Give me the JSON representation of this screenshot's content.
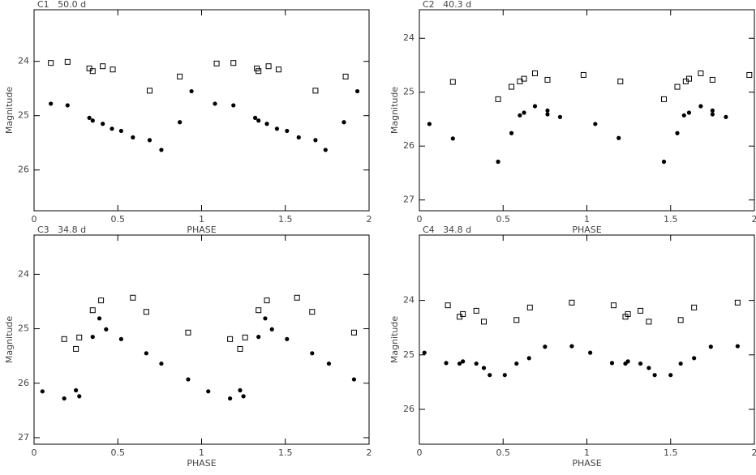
{
  "chart_data": [
    {
      "type": "scatter",
      "title": "C1   50.0 d",
      "xlabel": "PHASE",
      "ylabel": "Magnitude",
      "xlim": [
        0,
        2
      ],
      "ylim": [
        26.75,
        23.05
      ],
      "xticks": [
        0,
        0.5,
        1,
        1.5,
        2
      ],
      "yticks": [
        24,
        25,
        26
      ],
      "series": [
        {
          "marker": "square",
          "color": "#000000",
          "x": [
            0.1,
            0.2,
            0.33,
            0.35,
            0.41,
            0.47,
            0.69,
            0.87,
            1.09,
            1.19,
            1.33,
            1.34,
            1.4,
            1.46,
            1.68,
            1.86
          ],
          "values": [
            24.03,
            24.01,
            24.13,
            24.18,
            24.09,
            24.15,
            24.54,
            24.28,
            24.04,
            24.03,
            24.13,
            24.18,
            24.09,
            24.15,
            24.54,
            24.28
          ]
        },
        {
          "marker": "circle",
          "color": "#000000",
          "x": [
            0.1,
            0.2,
            0.33,
            0.35,
            0.41,
            0.465,
            0.52,
            0.59,
            0.69,
            0.76,
            0.87,
            0.94,
            1.08,
            1.19,
            1.32,
            1.34,
            1.39,
            1.45,
            1.51,
            1.58,
            1.68,
            1.74,
            1.85,
            1.93
          ],
          "values": [
            24.78,
            24.81,
            25.04,
            25.09,
            25.15,
            25.24,
            25.28,
            25.4,
            25.45,
            25.63,
            25.12,
            24.55,
            24.78,
            24.81,
            25.04,
            25.09,
            25.15,
            25.24,
            25.28,
            25.4,
            25.45,
            25.63,
            25.12,
            24.55
          ]
        }
      ]
    },
    {
      "type": "scatter",
      "title": "C2   40.3 d",
      "xlabel": "PHASE",
      "ylabel": "Magnitude",
      "xlim": [
        0,
        2
      ],
      "ylim": [
        27.2,
        23.47
      ],
      "xticks": [
        0,
        0.5,
        1,
        1.5,
        2
      ],
      "yticks": [
        24,
        25,
        26,
        27
      ],
      "series": [
        {
          "marker": "square",
          "color": "#000000",
          "x": [
            0.2,
            0.47,
            0.55,
            0.6,
            0.625,
            0.69,
            0.765,
            0.98,
            1.2,
            1.46,
            1.54,
            1.59,
            1.61,
            1.68,
            1.75,
            1.97
          ],
          "values": [
            24.81,
            25.13,
            24.9,
            24.8,
            24.75,
            24.65,
            24.77,
            24.68,
            24.8,
            25.13,
            24.9,
            24.8,
            24.75,
            24.65,
            24.77,
            24.68
          ]
        },
        {
          "marker": "circle",
          "color": "#000000",
          "x": [
            0.06,
            0.2,
            0.47,
            0.55,
            0.6,
            0.625,
            0.69,
            0.765,
            0.765,
            0.84,
            1.05,
            1.19,
            1.46,
            1.54,
            1.58,
            1.61,
            1.68,
            1.75,
            1.75,
            1.83
          ],
          "values": [
            25.59,
            25.86,
            26.29,
            25.76,
            25.43,
            25.38,
            25.26,
            25.41,
            25.34,
            25.46,
            25.59,
            25.85,
            26.29,
            25.76,
            25.43,
            25.38,
            25.26,
            25.41,
            25.34,
            25.46
          ]
        }
      ]
    },
    {
      "type": "scatter",
      "title": "C3   34.8 d",
      "xlabel": "PHASE",
      "ylabel": "Magnitude",
      "xlim": [
        0,
        2
      ],
      "ylim": [
        27.12,
        23.28
      ],
      "xticks": [
        0,
        0.5,
        1,
        1.5,
        2
      ],
      "yticks": [
        24,
        25,
        26,
        27
      ],
      "series": [
        {
          "marker": "square",
          "color": "#000000",
          "x": [
            0.18,
            0.25,
            0.27,
            0.35,
            0.4,
            0.59,
            0.67,
            0.92,
            1.17,
            1.23,
            1.26,
            1.34,
            1.39,
            1.57,
            1.66,
            1.91
          ],
          "values": [
            25.19,
            25.37,
            25.16,
            24.66,
            24.48,
            24.43,
            24.69,
            25.07,
            25.19,
            25.37,
            25.16,
            24.66,
            24.48,
            24.43,
            24.69,
            25.07
          ]
        },
        {
          "marker": "circle",
          "color": "#000000",
          "x": [
            0.05,
            0.18,
            0.25,
            0.27,
            0.35,
            0.39,
            0.43,
            0.52,
            0.67,
            0.76,
            0.92,
            1.04,
            1.17,
            1.23,
            1.25,
            1.34,
            1.38,
            1.42,
            1.51,
            1.66,
            1.76,
            1.91
          ],
          "values": [
            26.15,
            26.28,
            26.13,
            26.24,
            25.15,
            24.81,
            25.01,
            25.19,
            25.45,
            25.64,
            25.93,
            26.15,
            26.28,
            26.13,
            26.24,
            25.15,
            24.81,
            25.01,
            25.19,
            25.45,
            25.64,
            25.93
          ]
        }
      ]
    },
    {
      "type": "scatter",
      "title": "C4   34.8 d",
      "xlabel": "PHASE",
      "ylabel": "Magnitude",
      "xlim": [
        0,
        2
      ],
      "ylim": [
        26.64,
        22.8
      ],
      "xticks": [
        0,
        0.5,
        1,
        1.5,
        2
      ],
      "yticks": [
        24,
        25,
        26
      ],
      "series": [
        {
          "marker": "square",
          "color": "#000000",
          "x": [
            0.17,
            0.24,
            0.26,
            0.34,
            0.385,
            0.58,
            0.66,
            0.91,
            1.16,
            1.23,
            1.245,
            1.32,
            1.37,
            1.56,
            1.64,
            1.9
          ],
          "values": [
            24.09,
            24.3,
            24.25,
            24.19,
            24.39,
            24.36,
            24.13,
            24.04,
            24.09,
            24.3,
            24.25,
            24.19,
            24.39,
            24.36,
            24.13,
            24.04
          ]
        },
        {
          "marker": "circle",
          "color": "#000000",
          "x": [
            0.03,
            0.16,
            0.24,
            0.26,
            0.34,
            0.385,
            0.42,
            0.51,
            0.58,
            0.655,
            0.75,
            0.91,
            1.02,
            1.15,
            1.23,
            1.245,
            1.32,
            1.37,
            1.405,
            1.5,
            1.56,
            1.64,
            1.74,
            1.9
          ],
          "values": [
            24.96,
            25.15,
            25.16,
            25.12,
            25.16,
            25.24,
            25.37,
            25.37,
            25.16,
            25.06,
            24.85,
            24.84,
            24.96,
            25.15,
            25.16,
            25.12,
            25.16,
            25.24,
            25.37,
            25.37,
            25.16,
            25.06,
            24.85,
            24.84
          ]
        }
      ]
    }
  ]
}
